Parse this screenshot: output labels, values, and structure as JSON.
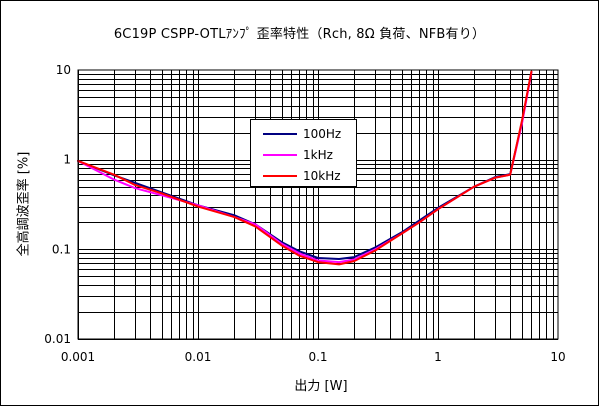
{
  "chart_data": {
    "type": "line",
    "title": "6C19P CSPP-OTLｱﾝﾌﾟ 歪率特性（Rch, 8Ω 負荷、NFB有り）",
    "xlabel": "出力 [W]",
    "ylabel": "全高調波歪率 [%]",
    "xscale": "log",
    "yscale": "log",
    "xlim": [
      0.001,
      10
    ],
    "ylim": [
      0.01,
      10
    ],
    "x_tick_labels": [
      "0.001",
      "0.01",
      "0.1",
      "1",
      "10"
    ],
    "y_tick_labels": [
      "0.01",
      "0.1",
      "1",
      "10"
    ],
    "x_ticks": [
      0.001,
      0.01,
      0.1,
      1,
      10
    ],
    "y_ticks": [
      0.01,
      0.1,
      1,
      10
    ],
    "grid": true,
    "legend_position": "upper-center",
    "series": [
      {
        "name": "100Hz",
        "color": "#000080",
        "points": [
          [
            0.001,
            0.97
          ],
          [
            0.002,
            0.67
          ],
          [
            0.003,
            0.55
          ],
          [
            0.005,
            0.43
          ],
          [
            0.01,
            0.31
          ],
          [
            0.02,
            0.24
          ],
          [
            0.03,
            0.19
          ],
          [
            0.05,
            0.12
          ],
          [
            0.07,
            0.095
          ],
          [
            0.1,
            0.08
          ],
          [
            0.15,
            0.078
          ],
          [
            0.2,
            0.082
          ],
          [
            0.3,
            0.105
          ],
          [
            0.5,
            0.155
          ],
          [
            0.7,
            0.21
          ],
          [
            1,
            0.29
          ],
          [
            2,
            0.5
          ],
          [
            3,
            0.64
          ],
          [
            4,
            0.69
          ],
          [
            5,
            2.6
          ],
          [
            6,
            9.5
          ]
        ]
      },
      {
        "name": "1kHz",
        "color": "#ff00ff",
        "points": [
          [
            0.001,
            0.97
          ],
          [
            0.002,
            0.6
          ],
          [
            0.003,
            0.48
          ],
          [
            0.005,
            0.4
          ],
          [
            0.01,
            0.31
          ],
          [
            0.02,
            0.23
          ],
          [
            0.03,
            0.19
          ],
          [
            0.05,
            0.115
          ],
          [
            0.07,
            0.09
          ],
          [
            0.1,
            0.075
          ],
          [
            0.15,
            0.072
          ],
          [
            0.2,
            0.077
          ],
          [
            0.3,
            0.1
          ],
          [
            0.5,
            0.15
          ],
          [
            0.7,
            0.2
          ],
          [
            1,
            0.28
          ],
          [
            2,
            0.5
          ],
          [
            3,
            0.63
          ],
          [
            4,
            0.68
          ],
          [
            5,
            2.5
          ],
          [
            6,
            9.3
          ]
        ]
      },
      {
        "name": "10kHz",
        "color": "#ff0000",
        "points": [
          [
            0.001,
            0.97
          ],
          [
            0.002,
            0.68
          ],
          [
            0.003,
            0.52
          ],
          [
            0.005,
            0.42
          ],
          [
            0.01,
            0.3
          ],
          [
            0.02,
            0.23
          ],
          [
            0.03,
            0.18
          ],
          [
            0.05,
            0.11
          ],
          [
            0.07,
            0.085
          ],
          [
            0.1,
            0.072
          ],
          [
            0.15,
            0.068
          ],
          [
            0.2,
            0.074
          ],
          [
            0.3,
            0.097
          ],
          [
            0.5,
            0.15
          ],
          [
            0.7,
            0.2
          ],
          [
            1,
            0.28
          ],
          [
            2,
            0.5
          ],
          [
            3,
            0.63
          ],
          [
            4,
            0.68
          ],
          [
            5,
            2.7
          ],
          [
            6,
            9.6
          ]
        ]
      }
    ]
  }
}
